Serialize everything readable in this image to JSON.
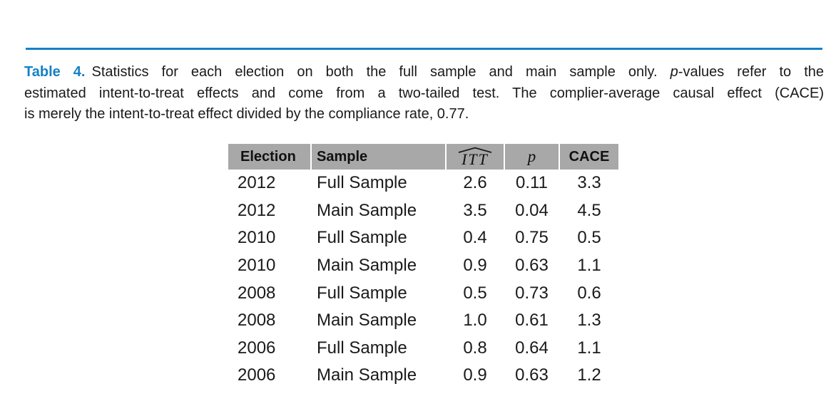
{
  "colors": {
    "accent_blue": "#1581c6",
    "header_gray": "#a8a8a8",
    "text": "#1a1a1a"
  },
  "caption": {
    "label": "Table 4.",
    "line1_pre": "Statistics for each election on both the full sample and main sample only. ",
    "line1_italic": "p",
    "line1_post": "-values refer to the",
    "line2": "estimated intent-to-treat effects and come from a two-tailed test. The complier-average causal effect (CACE)",
    "line3": "is merely the intent-to-treat effect divided by the compliance rate, 0.77."
  },
  "table": {
    "headers": {
      "election": "Election",
      "sample": "Sample",
      "itt": "ITT",
      "p": "p",
      "cace": "CACE"
    },
    "rows": [
      {
        "election": "2012",
        "sample": "Full Sample",
        "itt": "2.6",
        "p": "0.11",
        "cace": "3.3"
      },
      {
        "election": "2012",
        "sample": "Main Sample",
        "itt": "3.5",
        "p": "0.04",
        "cace": "4.5"
      },
      {
        "election": "2010",
        "sample": "Full Sample",
        "itt": "0.4",
        "p": "0.75",
        "cace": "0.5"
      },
      {
        "election": "2010",
        "sample": "Main Sample",
        "itt": "0.9",
        "p": "0.63",
        "cace": "1.1"
      },
      {
        "election": "2008",
        "sample": "Full Sample",
        "itt": "0.5",
        "p": "0.73",
        "cace": "0.6"
      },
      {
        "election": "2008",
        "sample": "Main Sample",
        "itt": "1.0",
        "p": "0.61",
        "cace": "1.3"
      },
      {
        "election": "2006",
        "sample": "Full Sample",
        "itt": "0.8",
        "p": "0.64",
        "cace": "1.1"
      },
      {
        "election": "2006",
        "sample": "Main Sample",
        "itt": "0.9",
        "p": "0.63",
        "cace": "1.2"
      }
    ]
  }
}
